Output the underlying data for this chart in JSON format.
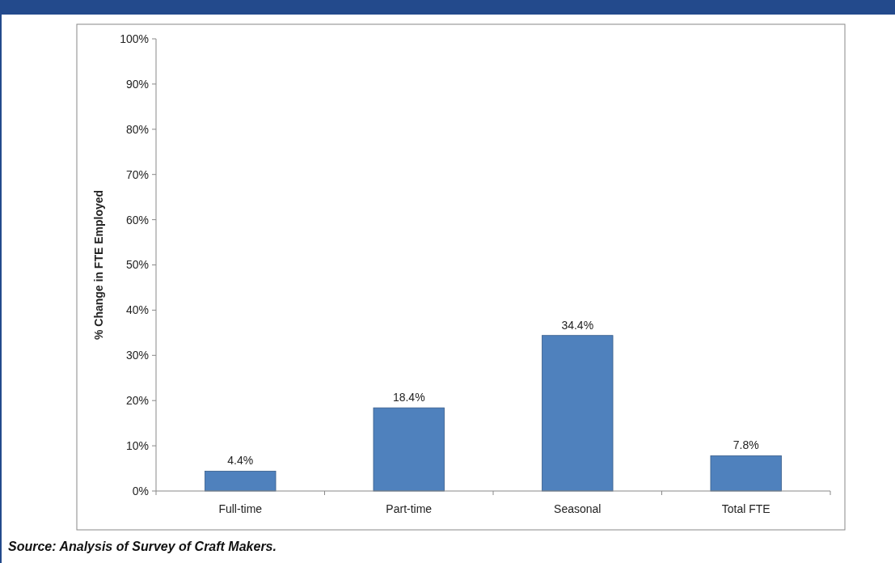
{
  "chart_data": {
    "type": "bar",
    "ylabel": "% Change in FTE Employed",
    "categories": [
      "Full-time",
      "Part-time",
      "Seasonal",
      "Total FTE"
    ],
    "values": [
      4.4,
      18.4,
      34.4,
      7.8
    ],
    "color": "#4f81bd",
    "value_labels": [
      "4.4%",
      "18.4%",
      "34.4%",
      "7.8%"
    ],
    "ylim": [
      0,
      100
    ],
    "yticks": [
      {
        "value": 0,
        "label": "0%"
      },
      {
        "value": 10,
        "label": "10%"
      },
      {
        "value": 20,
        "label": "20%"
      },
      {
        "value": 30,
        "label": "30%"
      },
      {
        "value": 40,
        "label": "40%"
      },
      {
        "value": 50,
        "label": "50%"
      },
      {
        "value": 60,
        "label": "60%"
      },
      {
        "value": 70,
        "label": "70%"
      },
      {
        "value": 80,
        "label": "80%"
      },
      {
        "value": 90,
        "label": "90%"
      },
      {
        "value": 100,
        "label": "100%"
      }
    ],
    "grid": false,
    "annotations": [
      "Source: Analysis of Survey of Craft Makers."
    ]
  }
}
